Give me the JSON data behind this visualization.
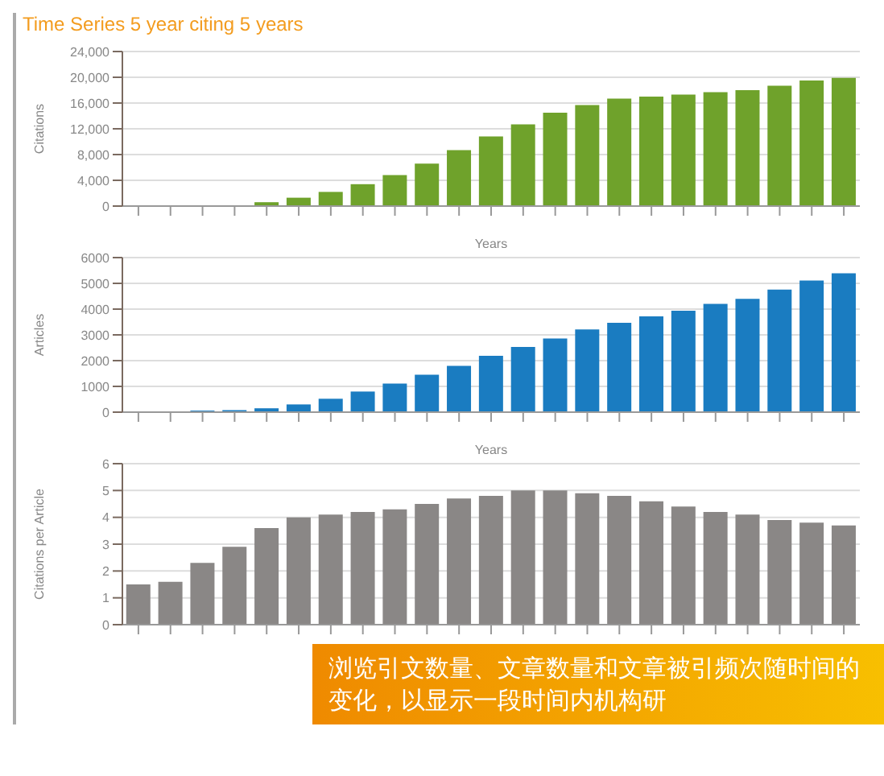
{
  "chart_data": [
    {
      "type": "bar",
      "subtitle": "Time Series 5 year citing 5 years",
      "ylabel": "Citations",
      "xlabel": "Years",
      "categories": [
        null,
        null,
        null,
        null,
        null,
        null,
        null,
        null,
        null,
        null,
        null,
        null,
        null,
        null,
        null,
        null,
        null,
        null,
        null,
        null,
        null,
        null,
        null
      ],
      "color": "#6fa22b",
      "values": [
        null,
        null,
        null,
        null,
        600,
        1300,
        2200,
        3400,
        4800,
        6600,
        8700,
        10800,
        12700,
        14500,
        15700,
        16700,
        17000,
        17300,
        17700,
        18000,
        18700,
        19500,
        19900
      ],
      "ylim": [
        0,
        24000
      ],
      "yticks": [
        0,
        {
          "value": 4000,
          "label": "4,000"
        },
        {
          "value": 8000,
          "label": "8,000"
        },
        {
          "value": 12000,
          "label": "12,000"
        },
        {
          "value": 16000,
          "label": "16,000"
        },
        {
          "value": 20000,
          "label": "20,000"
        },
        {
          "value": 24000,
          "label": "24,000"
        }
      ],
      "grid": "y"
    },
    {
      "type": "bar",
      "ylabel": "Articles",
      "xlabel": "Years",
      "categories": [
        null,
        null,
        null,
        null,
        null,
        null,
        null,
        null,
        null,
        null,
        null,
        null,
        null,
        null,
        null,
        null,
        null,
        null,
        null,
        null,
        null,
        null,
        null
      ],
      "color": "#1a7cc1",
      "values": [
        null,
        null,
        60,
        80,
        150,
        300,
        520,
        800,
        1110,
        1450,
        1800,
        2190,
        2530,
        2860,
        3210,
        3470,
        3720,
        3940,
        4200,
        4400,
        4760,
        5110,
        5390
      ],
      "ylim": [
        0,
        6000
      ],
      "yticks": [
        0,
        1000,
        2000,
        3000,
        4000,
        5000,
        6000
      ],
      "grid": "y"
    },
    {
      "type": "bar",
      "ylabel": "Citations per Article",
      "categories": [
        null,
        null,
        null,
        null,
        null,
        null,
        null,
        null,
        null,
        null,
        null,
        null,
        null,
        null,
        null,
        null,
        null,
        null,
        null,
        null,
        null,
        null,
        null
      ],
      "color": "#8a8786",
      "values": [
        1.5,
        1.6,
        2.3,
        2.9,
        3.6,
        4.0,
        4.1,
        4.2,
        4.3,
        4.5,
        4.7,
        4.8,
        5.0,
        5.0,
        4.9,
        4.8,
        4.6,
        4.4,
        4.2,
        4.1,
        3.9,
        3.8,
        3.7
      ],
      "ylim": [
        0,
        6
      ],
      "yticks": [
        0,
        1,
        2,
        3,
        4,
        5,
        6
      ],
      "grid": "y",
      "annotations": [
        "浏览引文数量、文章数量和文章被引频次随时间的变化，以显示一段时间内机构研"
      ]
    }
  ]
}
